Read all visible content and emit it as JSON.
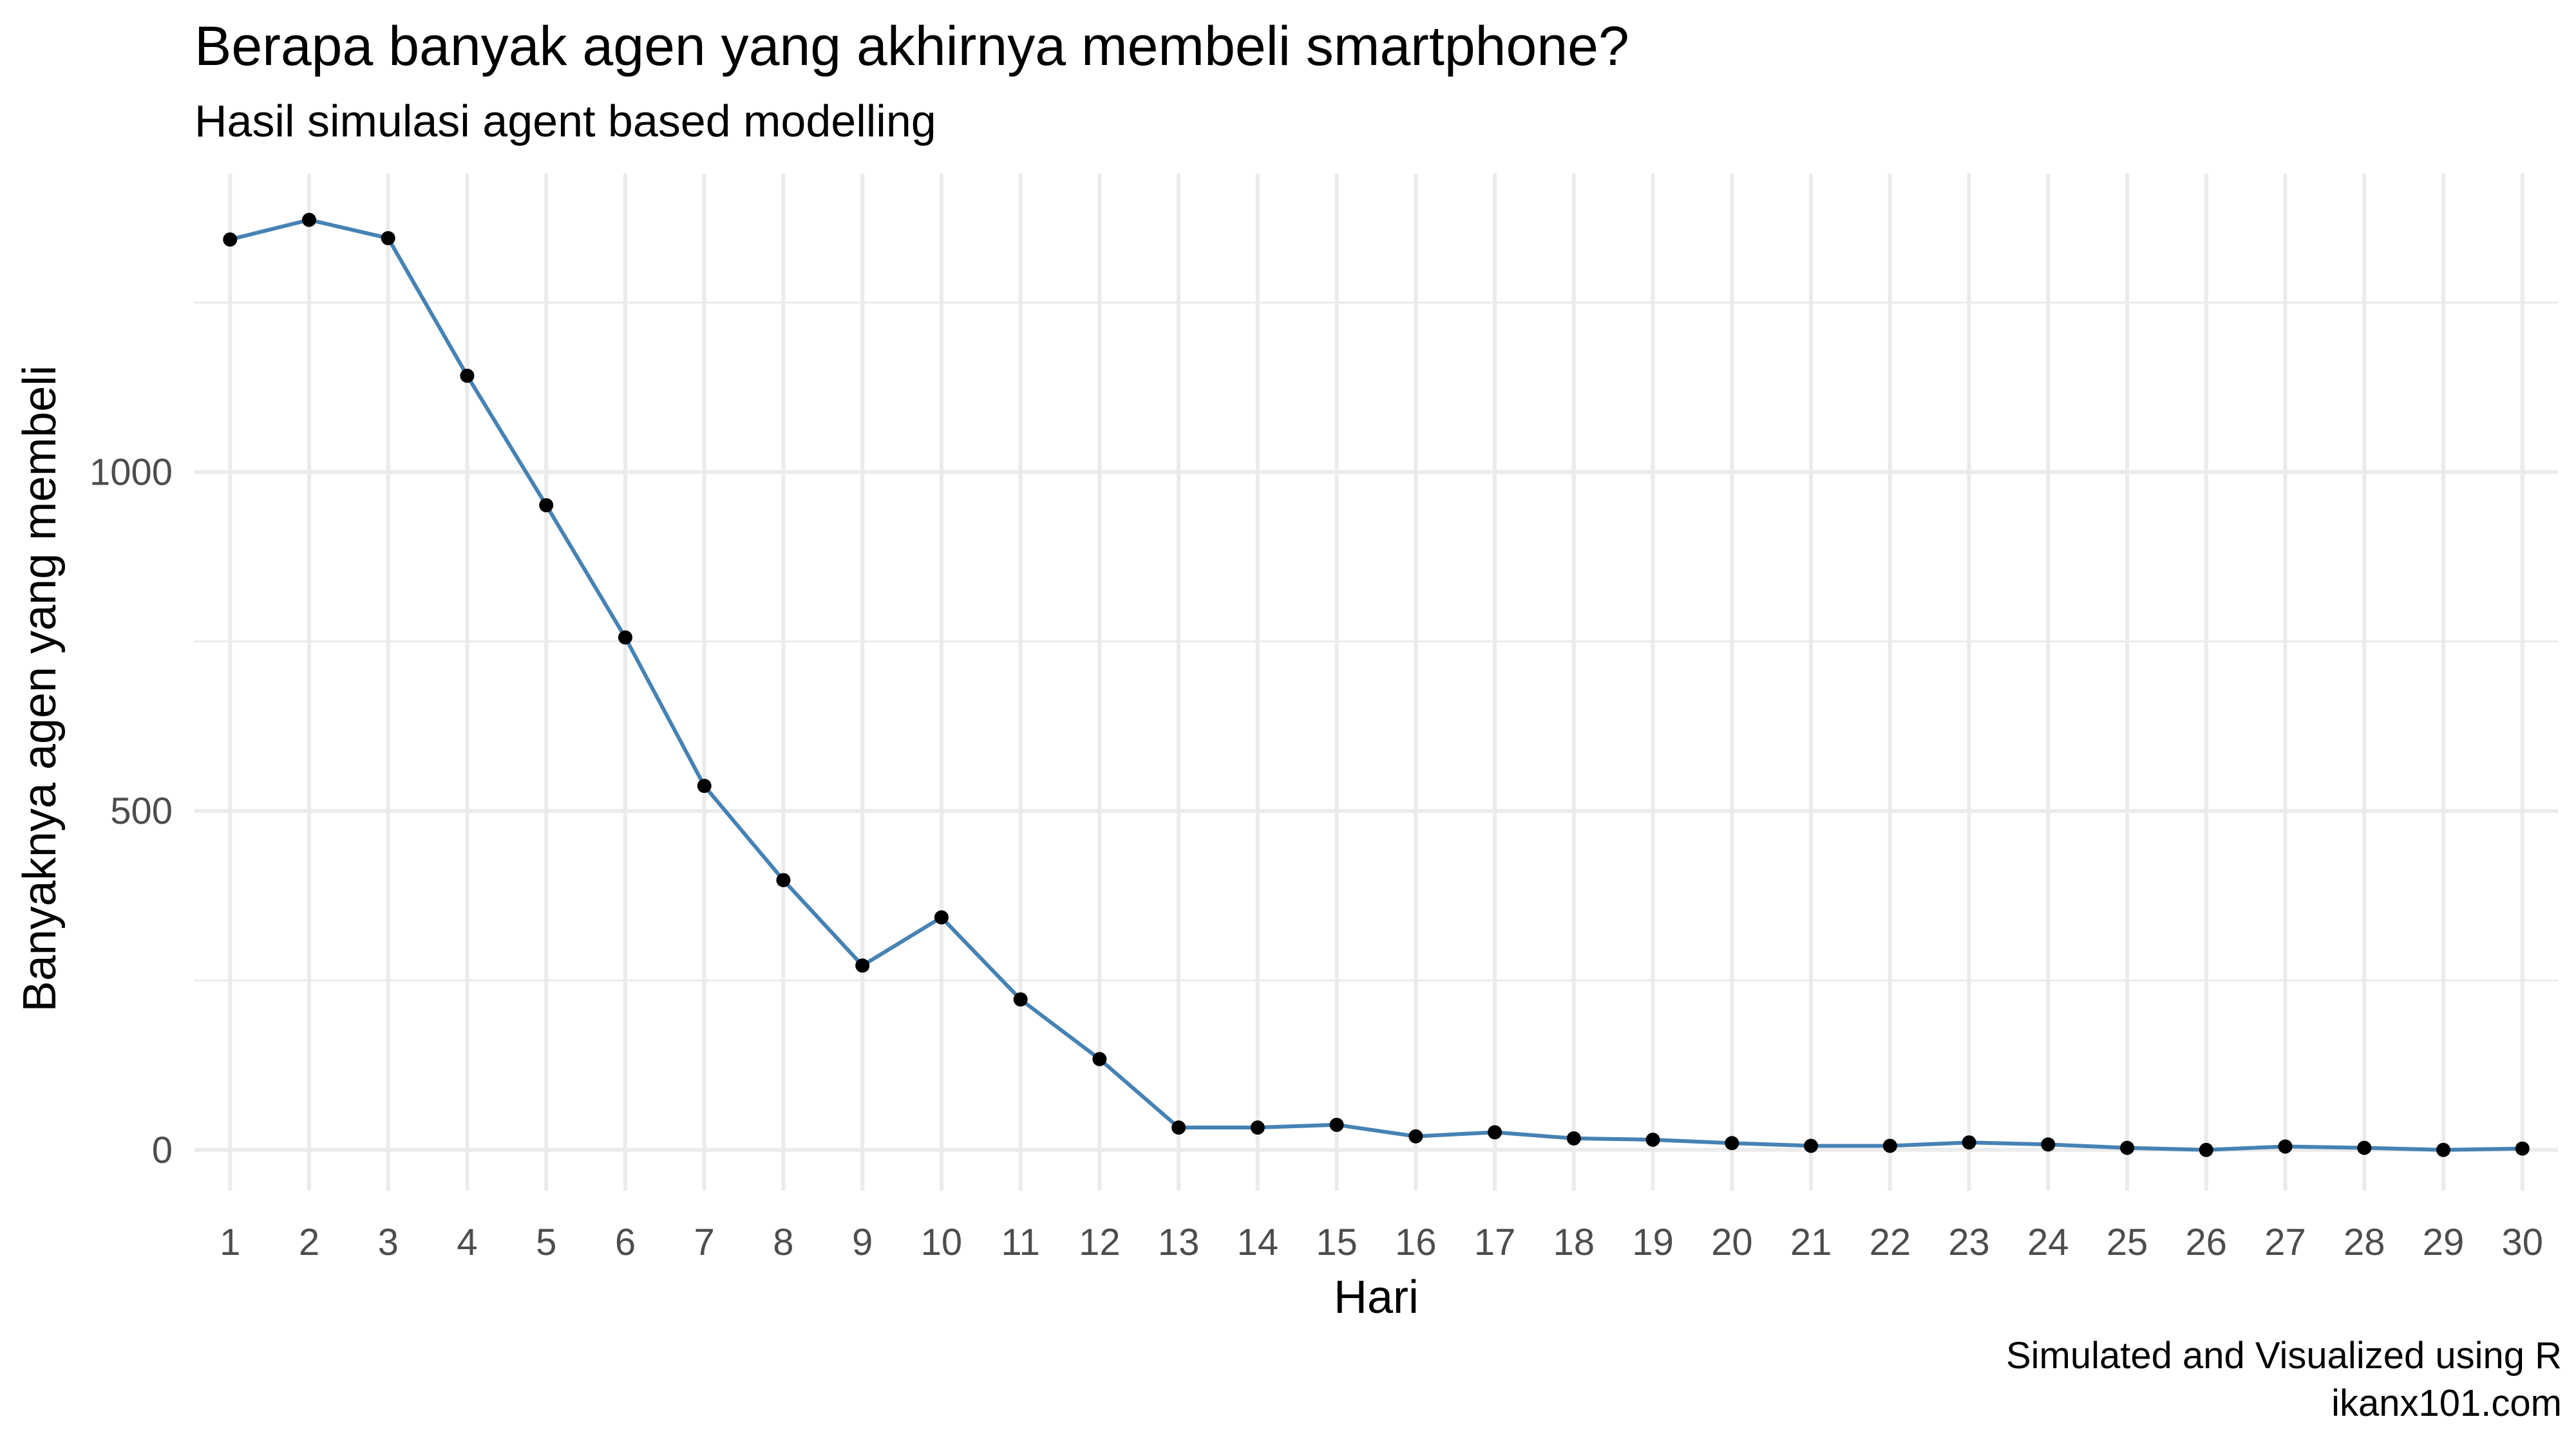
{
  "chart_data": {
    "type": "line",
    "title": "Berapa banyak agen yang akhirnya membeli smartphone?",
    "subtitle": "Hasil simulasi agent based modelling",
    "xlabel": "Hari",
    "ylabel": "Banyaknya agen yang membeli",
    "caption": [
      "Simulated and Visualized using R",
      "ikanx101.com"
    ],
    "x": [
      1,
      2,
      3,
      4,
      5,
      6,
      7,
      8,
      9,
      10,
      11,
      12,
      13,
      14,
      15,
      16,
      17,
      18,
      19,
      20,
      21,
      22,
      23,
      24,
      25,
      26,
      27,
      28,
      29,
      30
    ],
    "y": [
      1343,
      1372,
      1345,
      1142,
      951,
      756,
      537,
      398,
      272,
      343,
      222,
      134,
      33,
      33,
      37,
      20,
      26,
      17,
      15,
      10,
      6,
      6,
      11,
      8,
      3,
      0,
      5,
      3,
      0,
      2
    ],
    "yticks": [
      0,
      500,
      1000
    ],
    "ylim": [
      -60,
      1440
    ],
    "xlim": [
      0.55,
      30.45
    ],
    "grid": true,
    "line_color": "#4682b4",
    "point_color": "#000000",
    "grid_color": "#ebebeb"
  }
}
